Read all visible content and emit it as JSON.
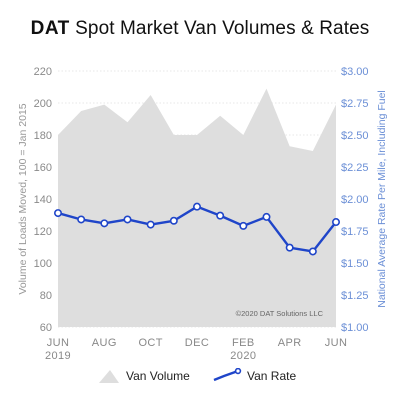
{
  "title": {
    "brand": "DAT",
    "rest": "Spot Market Van Volumes & Rates"
  },
  "credit": "©2020 DAT Solutions LLC",
  "colors": {
    "area": "#dedede",
    "line": "#1f45c9",
    "left_axis": "#8a8a8a",
    "right_axis": "#6b8fd6"
  },
  "chart_data": {
    "type": "line",
    "x": [
      "2019-06",
      "2019-07",
      "2019-08",
      "2019-09",
      "2019-10",
      "2019-11",
      "2019-12",
      "2020-01",
      "2020-02",
      "2020-03",
      "2020-04",
      "2020-05",
      "2020-06"
    ],
    "x_tick_labels": [
      {
        "x": "2019-06",
        "line1": "JUN",
        "line2": "2019"
      },
      {
        "x": "2019-08",
        "line1": "AUG",
        "line2": ""
      },
      {
        "x": "2019-10",
        "line1": "OCT",
        "line2": ""
      },
      {
        "x": "2019-12",
        "line1": "DEC",
        "line2": ""
      },
      {
        "x": "2020-02",
        "line1": "FEB",
        "line2": "2020"
      },
      {
        "x": "2020-04",
        "line1": "APR",
        "line2": ""
      },
      {
        "x": "2020-06",
        "line1": "JUN",
        "line2": ""
      }
    ],
    "series": [
      {
        "name": "Van Volume",
        "type": "area",
        "axis": "left",
        "values": [
          180,
          195,
          199,
          188,
          205,
          180,
          180,
          192,
          180,
          209,
          173,
          170,
          199
        ]
      },
      {
        "name": "Van Rate",
        "type": "line",
        "axis": "right",
        "values": [
          1.89,
          1.84,
          1.81,
          1.84,
          1.8,
          1.83,
          1.94,
          1.87,
          1.79,
          1.86,
          1.62,
          1.59,
          1.82
        ]
      }
    ],
    "left_axis": {
      "label": "Volume of Loads Moved, 100 = Jan 2015",
      "range": [
        60,
        220
      ],
      "ticks": [
        "60",
        "80",
        "100",
        "120",
        "140",
        "160",
        "180",
        "200",
        "220"
      ]
    },
    "right_axis": {
      "label": "National Average Rate Per Mile, Including Fuel",
      "range": [
        1.0,
        3.0
      ],
      "ticks": [
        "$1.00",
        "$1.25",
        "$1.50",
        "$1.75",
        "$2.00",
        "$2.25",
        "$2.50",
        "$2.75",
        "$3.00"
      ]
    },
    "grid": true,
    "legend": {
      "position": "bottom",
      "entries": [
        "Van Volume",
        "Van Rate"
      ]
    }
  }
}
